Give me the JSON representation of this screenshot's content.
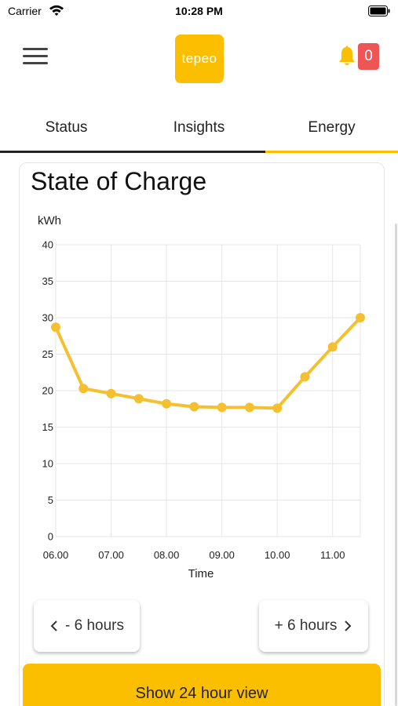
{
  "status_bar": {
    "carrier": "Carrier",
    "time": "10:28 PM"
  },
  "header": {
    "logo_text": "tepeo",
    "notification_count": "0",
    "menu_icon": "hamburger-icon",
    "bell_icon": "bell-icon"
  },
  "tabs": [
    {
      "label": "Status"
    },
    {
      "label": "Insights"
    },
    {
      "label": "Energy",
      "active": true
    }
  ],
  "card": {
    "title": "State of Charge"
  },
  "chart_data": {
    "type": "line",
    "title": "State of Charge",
    "ylabel": "kWh",
    "xlabel": "Time",
    "ylim": [
      0,
      40
    ],
    "yticks": [
      0,
      5,
      10,
      15,
      20,
      25,
      30,
      35,
      40
    ],
    "xlim": [
      "06:00",
      "11:30"
    ],
    "xtick_labels": [
      "06.00",
      "07.00",
      "08.00",
      "09.00",
      "10.00",
      "11.00"
    ],
    "x": [
      "06:00",
      "06:30",
      "07:00",
      "07:30",
      "08:00",
      "08:30",
      "09:00",
      "09:30",
      "10:00",
      "10:30",
      "11:00",
      "11:30"
    ],
    "series": [
      {
        "values": [
          28.7,
          20.3,
          19.6,
          18.9,
          18.2,
          17.8,
          17.7,
          17.7,
          17.6,
          21.9,
          26.0,
          30.0
        ]
      }
    ],
    "grid": true,
    "line_color": "#f5c030"
  },
  "buttons": {
    "prev_label": "- 6 hours",
    "next_label": "+ 6 hours",
    "show_24_label": "Show 24 hour view"
  },
  "colors": {
    "accent": "#fbbf00",
    "badge": "#ee5555"
  }
}
